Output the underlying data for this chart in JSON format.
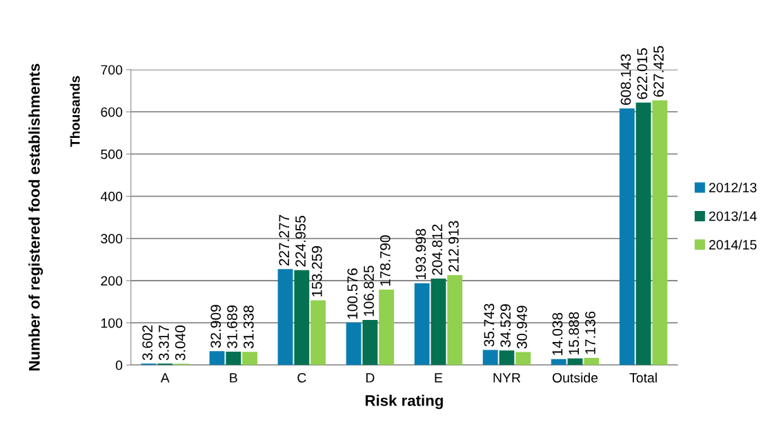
{
  "chart_data": {
    "type": "bar",
    "xlabel": "Risk rating",
    "ylabel": "Number of registered food establishments",
    "annotations": [
      "Thousands"
    ],
    "categories": [
      "A",
      "B",
      "C",
      "D",
      "E",
      "NYR",
      "Outside",
      "Total"
    ],
    "series": [
      {
        "name": "2012/13",
        "color": "#0a7db0",
        "values": [
          3.602,
          32.909,
          227.277,
          100.576,
          193.998,
          35.743,
          14.038,
          608.143
        ],
        "value_labels": [
          "3.602",
          "32.909",
          "227.277",
          "100.576",
          "193.998",
          "35.743",
          "14.038",
          "608.143"
        ]
      },
      {
        "name": "2013/14",
        "color": "#057152",
        "values": [
          3.317,
          31.689,
          224.955,
          106.825,
          204.812,
          34.529,
          15.888,
          622.015
        ],
        "value_labels": [
          "3.317",
          "31.689",
          "224.955",
          "106.825",
          "204.812",
          "34.529",
          "15.888",
          "622.015"
        ]
      },
      {
        "name": "2014/15",
        "color": "#92d050",
        "values": [
          3.04,
          31.338,
          153.259,
          178.79,
          212.913,
          30.949,
          17.136,
          627.425
        ],
        "value_labels": [
          "3.040",
          "31.338",
          "153.259",
          "178.790",
          "212.913",
          "30.949",
          "17.136",
          "627.425"
        ]
      }
    ],
    "ylim": [
      0,
      700
    ],
    "yticks": [
      0,
      100,
      200,
      300,
      400,
      500,
      600,
      700
    ],
    "grid": "y",
    "legend": "right"
  }
}
